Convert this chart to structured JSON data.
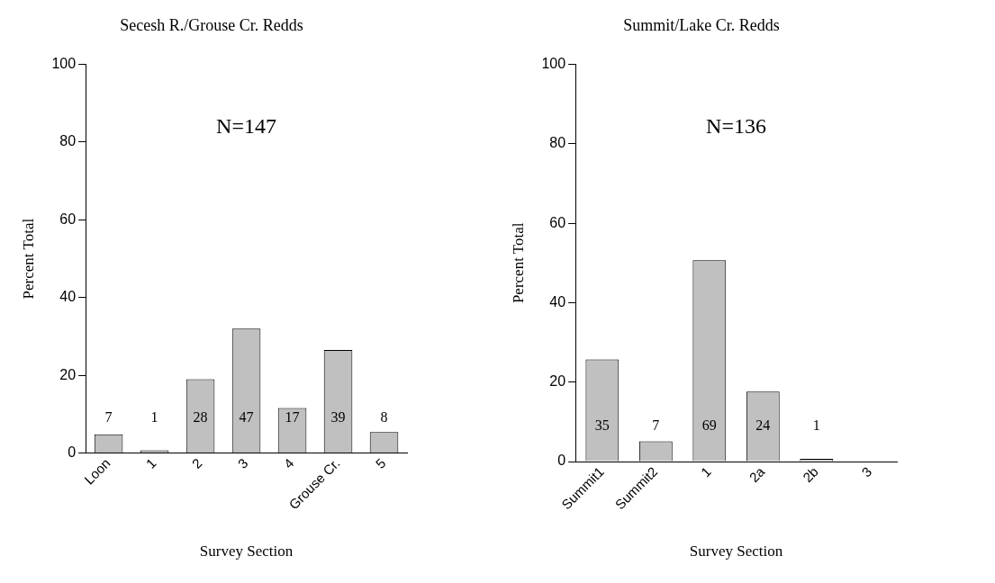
{
  "chart_data": [
    {
      "type": "bar",
      "title": "Secesh R./Grouse Cr. Redds",
      "xlabel": "Survey Section",
      "ylabel": "Percent Total",
      "categories": [
        "Loon",
        "1",
        "2",
        "3",
        "4",
        "Grouse Cr.",
        "5"
      ],
      "values": [
        4.8,
        0.7,
        19.0,
        32.0,
        11.6,
        26.5,
        5.4
      ],
      "color": "#c0c0c0",
      "ylim": [
        0,
        100
      ],
      "yticks": [
        0,
        20,
        40,
        60,
        80,
        100
      ],
      "annotations": [
        "N=147",
        "7",
        "1",
        "28",
        "47",
        "17",
        "39",
        "8"
      ],
      "grid": false,
      "legend": false
    },
    {
      "type": "bar",
      "title": "Summit/Lake Cr. Redds",
      "xlabel": "Survey Section",
      "ylabel": "Percent Total",
      "categories": [
        "Summit1",
        "Summit2",
        "1",
        "2a",
        "2b",
        "3"
      ],
      "values": [
        25.7,
        5.1,
        50.7,
        17.6,
        0.7,
        0
      ],
      "color": "#c0c0c0",
      "ylim": [
        0,
        100
      ],
      "yticks": [
        0,
        20,
        40,
        60,
        80,
        100
      ],
      "annotations": [
        "N=136",
        "35",
        "7",
        "69",
        "24",
        "1"
      ],
      "grid": false,
      "legend": false
    }
  ]
}
